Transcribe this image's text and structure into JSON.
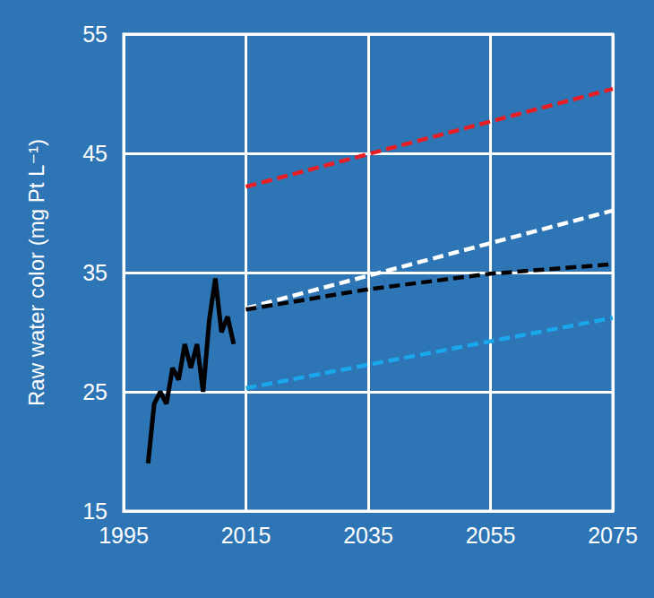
{
  "chart_data": {
    "type": "line",
    "ylabel": "Raw water color (mg Pt L⁻¹)",
    "xlim": [
      1995,
      2075
    ],
    "xticks": [
      1995,
      2015,
      2035,
      2055,
      2075
    ],
    "ylim": [
      15,
      55
    ],
    "yticks": [
      15,
      25,
      35,
      45,
      55
    ],
    "grid": true,
    "series": [
      {
        "color": "#000000",
        "line_style": "solid",
        "x": [
          1999,
          2000,
          2001,
          2002,
          2003,
          2004,
          2005,
          2006,
          2007,
          2008,
          2009,
          2010,
          2011,
          2012,
          2013
        ],
        "values": [
          19,
          24,
          25,
          24,
          27,
          26,
          29,
          27,
          29,
          25,
          31,
          34.5,
          30,
          31.3,
          29
        ]
      },
      {
        "color": "#E81E25",
        "line_style": "dashed",
        "x": [
          2015,
          2075
        ],
        "values": [
          42.2,
          50.4
        ]
      },
      {
        "color": "#FFFFFF",
        "line_style": "dashed",
        "x": [
          2015,
          2075
        ],
        "values": [
          32,
          40.2
        ]
      },
      {
        "color": "#000000",
        "line_style": "dashed",
        "x": [
          2015,
          2035,
          2055,
          2075
        ],
        "values": [
          31.9,
          33.6,
          34.9,
          35.7
        ]
      },
      {
        "color": "#1AA7EC",
        "line_style": "dashed",
        "x": [
          2015,
          2075
        ],
        "values": [
          25.3,
          31.2
        ]
      }
    ]
  }
}
